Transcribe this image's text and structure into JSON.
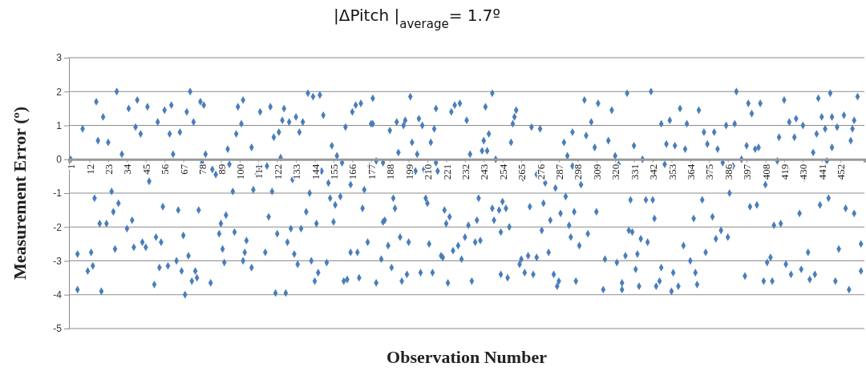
{
  "chart_data": {
    "type": "scatter",
    "title": "|ΔPitch |$_{average}$= 1.7º",
    "xlabel": "Observation Number",
    "ylabel": "Measurement Error (º)",
    "xlim": [
      0,
      466
    ],
    "xticks": [
      1,
      12,
      23,
      34,
      45,
      56,
      67,
      78,
      89,
      100,
      111,
      122,
      133,
      144,
      155,
      166,
      177,
      188,
      199,
      210,
      221,
      232,
      243,
      254,
      265,
      276,
      287,
      298,
      309,
      320,
      331,
      342,
      353,
      364,
      375,
      386,
      397,
      408,
      419,
      430,
      441,
      452
    ],
    "ylim": [
      -5,
      3
    ],
    "yticks": [
      -5,
      -4,
      -3,
      -2,
      -1,
      0,
      1,
      2,
      3
    ],
    "grid": "y",
    "marker": "diamond",
    "series": [
      {
        "color": "#4a7ebb",
        "x": [
          1,
          5,
          5,
          8,
          11,
          13,
          14,
          15,
          16,
          17,
          18,
          19,
          20,
          22,
          23,
          25,
          26,
          27,
          28,
          29,
          31,
          34,
          35,
          37,
          38,
          39,
          40,
          42,
          43,
          45,
          46,
          47,
          50,
          51,
          52,
          53,
          54,
          55,
          56,
          58,
          59,
          60,
          61,
          63,
          64,
          65,
          66,
          67,
          68,
          69,
          70,
          71,
          72,
          73,
          74,
          75,
          76,
          77,
          78,
          79,
          80,
          83,
          84,
          86,
          88,
          89,
          90,
          91,
          92,
          93,
          94,
          96,
          97,
          98,
          99,
          101,
          102,
          102,
          103,
          104,
          107,
          107,
          108,
          110,
          111,
          112,
          115,
          116,
          117,
          118,
          119,
          120,
          121,
          122,
          123,
          124,
          125,
          126,
          127,
          128,
          129,
          130,
          131,
          132,
          133,
          134,
          135,
          136,
          137,
          139,
          140,
          141,
          142,
          143,
          144,
          145,
          146,
          147,
          148,
          149,
          151,
          152,
          153,
          154,
          155,
          156,
          157,
          159,
          160,
          161,
          162,
          163,
          165,
          165,
          166,
          168,
          169,
          170,
          171,
          172,
          173,
          175,
          176,
          177,
          178,
          178,
          180,
          180,
          183,
          184,
          185,
          184,
          187,
          188,
          189,
          190,
          191,
          192,
          193,
          194,
          195,
          196,
          197,
          198,
          199,
          200,
          201,
          203,
          204,
          205,
          206,
          207,
          208,
          209,
          210,
          211,
          212,
          213,
          214,
          215,
          215,
          216,
          218,
          219,
          220,
          221,
          222,
          223,
          224,
          225,
          226,
          228,
          229,
          230,
          232,
          233,
          234,
          235,
          236,
          238,
          239,
          240,
          241,
          242,
          243,
          244,
          245,
          246,
          248,
          248,
          249,
          250,
          252,
          253,
          253,
          254,
          256,
          257,
          258,
          259,
          260,
          261,
          262,
          264,
          265,
          266,
          267,
          269,
          270,
          271,
          272,
          274,
          274,
          276,
          277,
          278,
          279,
          281,
          282,
          284,
          285,
          286,
          287,
          288,
          290,
          291,
          292,
          293,
          294,
          295,
          295,
          296,
          297,
          299,
          300,
          302,
          303,
          304,
          306,
          308,
          309,
          310,
          313,
          314,
          316,
          318,
          320,
          321,
          322,
          324,
          324,
          326,
          327,
          328,
          329,
          330,
          331,
          332,
          333,
          334,
          335,
          336,
          338,
          339,
          341,
          342,
          343,
          344,
          346,
          347,
          347,
          349,
          350,
          352,
          353,
          354,
          355,
          357,
          358,
          360,
          361,
          362,
          364,
          366,
          367,
          368,
          369,
          371,
          372,
          373,
          374,
          375,
          377,
          378,
          379,
          380,
          382,
          383,
          385,
          386,
          387,
          389,
          390,
          391,
          394,
          396,
          397,
          398,
          399,
          400,
          402,
          403,
          404,
          405,
          407,
          408,
          409,
          411,
          412,
          413,
          415,
          416,
          417,
          419,
          420,
          421,
          422,
          423,
          425,
          426,
          428,
          429,
          430,
          431,
          433,
          434,
          436,
          437,
          438,
          439,
          440,
          441,
          443,
          444,
          445,
          446,
          447,
          447,
          449,
          450,
          451,
          453,
          454,
          455,
          457,
          458,
          459,
          460,
          460,
          462,
          464,
          464
        ],
        "values": [
          0,
          -3.85,
          -2.8,
          0.9,
          -3.3,
          -2.75,
          -3.15,
          -1.15,
          1.7,
          0.55,
          -1.9,
          -3.9,
          1.25,
          -1.9,
          0.5,
          -0.95,
          -1.55,
          -2.65,
          2,
          -1.3,
          0.15,
          -2.05,
          1.5,
          -1.8,
          -2.6,
          0.95,
          1.75,
          0.75,
          -2.45,
          -2.6,
          1.55,
          -0.65,
          -3.7,
          -2.3,
          1.1,
          -3.2,
          -2.45,
          -1.4,
          1.45,
          -3.15,
          0.75,
          1.6,
          0.15,
          -3,
          -1.5,
          0.8,
          -3.3,
          -2.25,
          -4,
          1.4,
          -2.85,
          2,
          -3.6,
          1.1,
          -3.3,
          -3.5,
          -1.5,
          1.7,
          -0.1,
          1.6,
          0.15,
          -3.65,
          -0.3,
          -0.45,
          -2.2,
          -1.9,
          -2.65,
          -3.05,
          -1.65,
          0.3,
          -0.15,
          -0.95,
          -2.15,
          0.75,
          1.55,
          1.05,
          -3,
          1.75,
          -2.75,
          -2.4,
          -3.2,
          0.35,
          -0.9,
          -0.45,
          -0.25,
          1.4,
          -2.75,
          -0.2,
          -1.7,
          1.55,
          -0.95,
          0.65,
          -3.95,
          -2.2,
          0.8,
          0.05,
          1.15,
          1.5,
          -3.95,
          -2.45,
          1.1,
          -2.05,
          -0.6,
          -2.8,
          1.25,
          -3.1,
          0.8,
          -2.05,
          1.1,
          -1.55,
          1.95,
          -1,
          -3,
          1.85,
          -3.6,
          -1.9,
          -3.35,
          1.9,
          -0.35,
          1.3,
          -3.05,
          -0.7,
          -1.15,
          0.4,
          -1.85,
          -1.35,
          0.1,
          -1.1,
          -0.1,
          -3.6,
          0.95,
          -3.55,
          -2.75,
          -0.75,
          1.4,
          1.6,
          -2.75,
          -3.5,
          1.65,
          -1.45,
          -0.9,
          -2.45,
          -0.2,
          1.05,
          1.8,
          1.05,
          -3.65,
          -0.05,
          -2.95,
          -1.85,
          -1.8,
          -0.1,
          -2.55,
          0.85,
          -3.2,
          -1.15,
          -1.45,
          1.1,
          0.2,
          -2.3,
          -3.6,
          1,
          1.15,
          -3.4,
          -2.45,
          1.85,
          0.5,
          -0.35,
          0.15,
          1.2,
          -3.35,
          1,
          -0.3,
          -1.15,
          -1.3,
          -2.5,
          0.5,
          -3.35,
          0.9,
          1.5,
          -0.1,
          -0.35,
          -2.85,
          -2.9,
          -1.5,
          -1.9,
          -3.65,
          -1.7,
          1.4,
          -2.7,
          1.6,
          -2.55,
          1.65,
          -2.95,
          -2.3,
          1.15,
          -1.95,
          0.15,
          -3.6,
          -2.45,
          -1.8,
          -1.15,
          -2.4,
          0.25,
          0.55,
          1.55,
          0.25,
          0.75,
          -1.45,
          1.95,
          -1.8,
          0,
          -1.5,
          -3.4,
          -2.15,
          -1.25,
          -1.45,
          -3.5,
          -2,
          0.5,
          1.05,
          1.25,
          1.45,
          -3.1,
          -2.95,
          -0.55,
          -3.35,
          -2.85,
          -1.4,
          0.95,
          -3.4,
          -2.9,
          -0.45,
          0.9,
          -2.1,
          -1.3,
          -0.7,
          -2.75,
          -1.8,
          -3.4,
          -0.85,
          -3.75,
          -3.6,
          -1.6,
          0.5,
          -1.1,
          0.1,
          -1.95,
          -2.3,
          0.8,
          -0.2,
          -1.55,
          -3.6,
          -2.55,
          -0.75,
          1.75,
          0.7,
          -2.2,
          1.1,
          0.35,
          -1.55,
          1.65,
          -3.85,
          -2.95,
          0.55,
          1.45,
          0.1,
          -3.05,
          -0.15,
          -3.65,
          -3.85,
          -2.85,
          1.95,
          -2.1,
          -1.2,
          -2.15,
          0.4,
          -3.25,
          -2.8,
          -3.75,
          -2.35,
          0,
          -1.2,
          -2.45,
          2,
          -1.2,
          -1.75,
          -3.75,
          -3.6,
          -3.2,
          1.05,
          -0.15,
          0.45,
          1.15,
          -3.9,
          -3.35,
          0.4,
          -3.75,
          1.5,
          -2.55,
          0.3,
          1.05,
          -3,
          -1.75,
          -3.35,
          -3.7,
          1.45,
          -1.2,
          0.8,
          -2.75,
          0.45,
          -0.5,
          -1.7,
          0.8,
          -2.35,
          0.3,
          -2.1,
          -0.1,
          1,
          -2.3,
          -1,
          -0.2,
          1.05,
          2,
          0,
          -3.45,
          0.4,
          1.65,
          -1.4,
          1.35,
          0.3,
          -1.35,
          0.35,
          1.65,
          -3.6,
          -0.75,
          -3.05,
          -2.9,
          -3.6,
          -1.95,
          -0.05,
          0.65,
          -1.9,
          1.75,
          -3.1,
          -0.3,
          1.1,
          -3.4,
          0.65,
          1.2,
          -1.6,
          -3.25,
          1,
          -0.55,
          -2.75,
          -3.55,
          0.2,
          -3.4,
          0.75,
          1.8,
          -1.35,
          1.25,
          0.9,
          -0.05,
          -1.15,
          1.95,
          0.35,
          1.25,
          -3.6,
          0.95,
          -2.65,
          -0.35,
          1.3,
          -1.45,
          -3.85,
          0.55,
          0.9,
          -1.6,
          1.15,
          1.85,
          -2.5,
          -3.3
        ]
      }
    ]
  }
}
